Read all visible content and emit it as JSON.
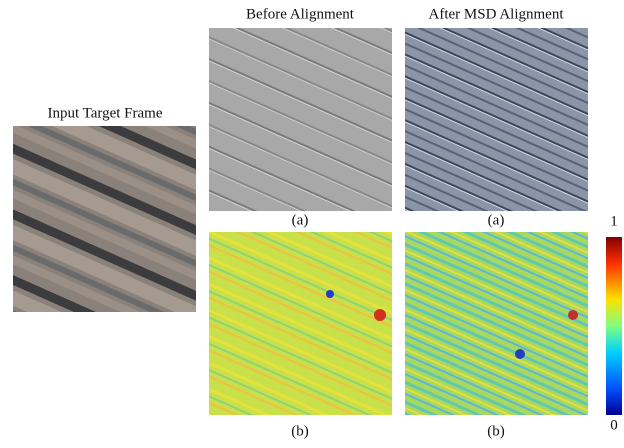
{
  "figure": {
    "input_title": "Input Target Frame",
    "columns": [
      {
        "title": "Before Alignment",
        "labels": [
          "(a)",
          "(b)"
        ]
      },
      {
        "title": "After MSD Alignment",
        "labels": [
          "(a)",
          "(b)"
        ]
      }
    ],
    "colorbar": {
      "max": 1,
      "min": 0
    }
  }
}
